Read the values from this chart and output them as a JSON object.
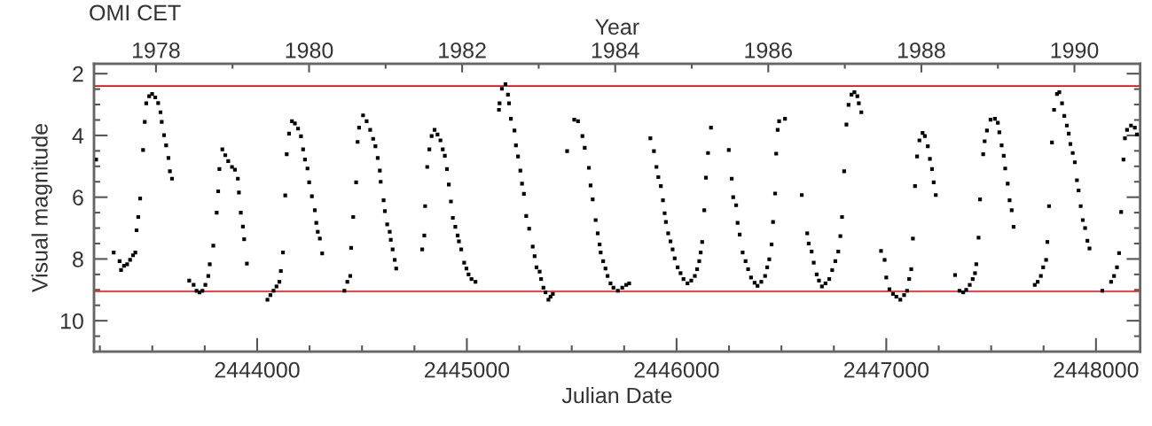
{
  "chart_data": {
    "type": "scatter",
    "title": "OMI CET",
    "xlabel": "Julian Date",
    "ylabel": "Visual magnitude",
    "x2label": "Year",
    "marker": "square",
    "grid": false,
    "xlim": [
      2443222,
      2448211
    ],
    "ylim": [
      11.0,
      1.68
    ],
    "x2lim": [
      1977.19,
      1990.86
    ],
    "xticks": [
      {
        "value": 2443250,
        "label": null
      },
      {
        "value": 2443500,
        "label": null
      },
      {
        "value": 2443750,
        "label": null
      },
      2444000,
      {
        "value": 2444250,
        "label": null
      },
      {
        "value": 2444500,
        "label": null
      },
      {
        "value": 2444750,
        "label": null
      },
      2445000,
      {
        "value": 2445250,
        "label": null
      },
      {
        "value": 2445500,
        "label": null
      },
      {
        "value": 2445750,
        "label": null
      },
      2446000,
      {
        "value": 2446250,
        "label": null
      },
      {
        "value": 2446500,
        "label": null
      },
      {
        "value": 2446750,
        "label": null
      },
      2447000,
      {
        "value": 2447250,
        "label": null
      },
      {
        "value": 2447500,
        "label": null
      },
      {
        "value": 2447750,
        "label": null
      },
      2448000
    ],
    "yticks": [
      2,
      {
        "value": 2.5,
        "label": null
      },
      {
        "value": 3,
        "label": null
      },
      {
        "value": 3.5,
        "label": null
      },
      4,
      {
        "value": 4.5,
        "label": null
      },
      {
        "value": 5,
        "label": null
      },
      {
        "value": 5.5,
        "label": null
      },
      6,
      {
        "value": 6.5,
        "label": null
      },
      {
        "value": 7,
        "label": null
      },
      {
        "value": 7.5,
        "label": null
      },
      8,
      {
        "value": 8.5,
        "label": null
      },
      {
        "value": 9,
        "label": null
      },
      {
        "value": 9.5,
        "label": null
      },
      10,
      {
        "value": 10.5,
        "label": null
      }
    ],
    "x2ticks": [
      1978,
      {
        "value": 1979,
        "label": null
      },
      1980,
      {
        "value": 1981,
        "label": null
      },
      1982,
      {
        "value": 1983,
        "label": null
      },
      1984,
      {
        "value": 1985,
        "label": null
      },
      1986,
      {
        "value": 1987,
        "label": null
      },
      1988,
      {
        "value": 1989,
        "label": null
      },
      1990
    ],
    "ref_lines": [
      {
        "axis": "y",
        "value": 2.4,
        "color": "#ff0000"
      },
      {
        "axis": "y",
        "value": 9.05,
        "color": "#ff0000"
      }
    ],
    "series": [
      {
        "color": "#000000",
        "x": [
          2443232,
          2443316,
          2443344,
          2443351,
          2443365,
          2443380,
          2443394,
          2443408,
          2443419,
          2443425,
          2443433,
          2443442,
          2443456,
          2443464,
          2443471,
          2443485,
          2443499,
          2443514,
          2443528,
          2443539,
          2443545,
          2443556,
          2443566,
          2443577,
          2443584,
          2443594,
          2443676,
          2443697,
          2443711,
          2443725,
          2443739,
          2443753,
          2443767,
          2443774,
          2443791,
          2443807,
          2443814,
          2443820,
          2443834,
          2443848,
          2443862,
          2443880,
          2443894,
          2443908,
          2443913,
          2443922,
          2443932,
          2443938,
          2443951,
          2444049,
          2444063,
          2444078,
          2444092,
          2444106,
          2444113,
          2444123,
          2444134,
          2444141,
          2444152,
          2444166,
          2444180,
          2444195,
          2444209,
          2444219,
          2444228,
          2444240,
          2444248,
          2444261,
          2444275,
          2444282,
          2444289,
          2444299,
          2444310,
          2444416,
          2444430,
          2444444,
          2444448,
          2444458,
          2444472,
          2444479,
          2444486,
          2444505,
          2444522,
          2444539,
          2444553,
          2444564,
          2444575,
          2444585,
          2444589,
          2444603,
          2444609,
          2444620,
          2444632,
          2444637,
          2444646,
          2444656,
          2444663,
          2444787,
          2444797,
          2444801,
          2444811,
          2444821,
          2444832,
          2444846,
          2444860,
          2444874,
          2444885,
          2444895,
          2444905,
          2444914,
          2444924,
          2444933,
          2444945,
          2444956,
          2444962,
          2444973,
          2444987,
          2444998,
          2445008,
          2445022,
          2445041,
          2445153,
          2445156,
          2445167,
          2445184,
          2445196,
          2445201,
          2445210,
          2445227,
          2445234,
          2445244,
          2445255,
          2445263,
          2445272,
          2445283,
          2445297,
          2445314,
          2445323,
          2445332,
          2445347,
          2445354,
          2445365,
          2445375,
          2445389,
          2445399,
          2445410,
          2445478,
          2445512,
          2445530,
          2445551,
          2445562,
          2445582,
          2445590,
          2445600,
          2445614,
          2445624,
          2445633,
          2445638,
          2445650,
          2445661,
          2445671,
          2445685,
          2445699,
          2445720,
          2445741,
          2445760,
          2445774,
          2445875,
          2445892,
          2445904,
          2445913,
          2445925,
          2445935,
          2445943,
          2445949,
          2445960,
          2445971,
          2445981,
          2445991,
          2446005,
          2446019,
          2446033,
          2446052,
          2446070,
          2446087,
          2446098,
          2446108,
          2446115,
          2446122,
          2446132,
          2446140,
          2446150,
          2446164,
          2446249,
          2446263,
          2446270,
          2446284,
          2446291,
          2446301,
          2446315,
          2446329,
          2446341,
          2446355,
          2446372,
          2446386,
          2446404,
          2446422,
          2446432,
          2446442,
          2446453,
          2446460,
          2446470,
          2446475,
          2446482,
          2446489,
          2446517,
          2446597,
          2446623,
          2446630,
          2446644,
          2446654,
          2446668,
          2446679,
          2446693,
          2446710,
          2446728,
          2446742,
          2446757,
          2446771,
          2446781,
          2446789,
          2446799,
          2446810,
          2446820,
          2446834,
          2446848,
          2446862,
          2446869,
          2446881,
          2446975,
          2446992,
          2447000,
          2447015,
          2447032,
          2447048,
          2447067,
          2447085,
          2447099,
          2447109,
          2447119,
          2447127,
          2447137,
          2447147,
          2447158,
          2447173,
          2447184,
          2447198,
          2447208,
          2447218,
          2447226,
          2447236,
          2447328,
          2447349,
          2447367,
          2447381,
          2447398,
          2447412,
          2447423,
          2447429,
          2447440,
          2447447,
          2447462,
          2447469,
          2447480,
          2447497,
          2447518,
          2447532,
          2447539,
          2447550,
          2447560,
          2447567,
          2447579,
          2447588,
          2447598,
          2447607,
          2447708,
          2447722,
          2447737,
          2447748,
          2447762,
          2447768,
          2447776,
          2447790,
          2447800,
          2447814,
          2447825,
          2447838,
          2447849,
          2447861,
          2447870,
          2447878,
          2447889,
          2447899,
          2447909,
          2447917,
          2447927,
          2447937,
          2447948,
          2447959,
          2447969,
          2448030,
          2448072,
          2448086,
          2448100,
          2448110,
          2448120,
          2448131,
          2448138,
          2448148,
          2448167,
          2448185,
          2448195
        ],
        "values": [
          4.78,
          7.79,
          8.07,
          8.36,
          8.22,
          8.17,
          8.03,
          7.88,
          7.79,
          7.07,
          6.64,
          6.04,
          4.47,
          3.56,
          2.96,
          2.73,
          2.66,
          2.77,
          2.95,
          3.25,
          3.56,
          3.99,
          4.32,
          4.73,
          5.16,
          5.4,
          8.7,
          8.84,
          9.03,
          9.08,
          9.03,
          8.84,
          8.55,
          8.17,
          7.57,
          6.5,
          5.81,
          5.09,
          4.45,
          4.64,
          4.83,
          5.02,
          5.11,
          5.4,
          5.85,
          6.5,
          6.95,
          7.36,
          8.15,
          9.32,
          9.17,
          9.03,
          8.89,
          8.74,
          8.39,
          7.79,
          5.94,
          4.61,
          3.94,
          3.54,
          3.61,
          3.78,
          4.03,
          4.45,
          4.78,
          5.07,
          5.52,
          5.97,
          6.42,
          6.83,
          7.12,
          7.34,
          7.82,
          9.03,
          8.74,
          8.55,
          7.64,
          6.64,
          5.52,
          4.21,
          3.75,
          3.35,
          3.54,
          3.82,
          4.11,
          4.35,
          4.73,
          5.14,
          5.5,
          6.1,
          6.45,
          6.88,
          7.12,
          7.38,
          7.69,
          8.03,
          8.31,
          7.69,
          7.24,
          6.29,
          5.02,
          4.45,
          4.02,
          3.82,
          3.97,
          4.16,
          4.45,
          4.66,
          5.09,
          5.59,
          6.14,
          6.67,
          6.96,
          7.24,
          7.43,
          7.69,
          8.12,
          8.31,
          8.5,
          8.65,
          8.74,
          3.17,
          2.96,
          2.49,
          2.34,
          2.68,
          2.96,
          3.46,
          3.84,
          4.32,
          4.68,
          5.14,
          5.56,
          5.89,
          6.61,
          7.02,
          7.6,
          7.91,
          8.27,
          8.41,
          8.65,
          8.93,
          9.08,
          9.32,
          9.22,
          9.13,
          4.51,
          3.49,
          3.54,
          4.02,
          4.4,
          5.05,
          5.62,
          6.07,
          6.74,
          7.17,
          7.53,
          7.79,
          8.07,
          8.31,
          8.55,
          8.79,
          8.93,
          9.03,
          8.93,
          8.84,
          8.79,
          4.09,
          4.51,
          5.02,
          5.35,
          5.64,
          6.1,
          6.52,
          6.8,
          7.17,
          7.43,
          7.69,
          7.98,
          8.27,
          8.46,
          8.65,
          8.79,
          8.7,
          8.55,
          8.33,
          8.07,
          7.79,
          7.45,
          6.42,
          5.37,
          4.57,
          3.75,
          4.47,
          5.4,
          6.0,
          6.26,
          6.83,
          7.21,
          7.79,
          8.07,
          8.33,
          8.6,
          8.77,
          8.87,
          8.74,
          8.55,
          8.27,
          8.01,
          7.53,
          6.8,
          5.88,
          4.59,
          3.82,
          3.54,
          3.46,
          5.93,
          7.17,
          7.5,
          7.76,
          8.12,
          8.5,
          8.7,
          8.89,
          8.79,
          8.65,
          8.36,
          8.07,
          7.76,
          7.26,
          6.64,
          5.16,
          3.65,
          3.01,
          2.68,
          2.6,
          2.73,
          2.96,
          3.25,
          7.74,
          8.03,
          8.6,
          8.98,
          9.13,
          9.22,
          9.32,
          9.17,
          9.03,
          8.65,
          8.33,
          7.34,
          5.64,
          4.68,
          4.16,
          3.92,
          4.02,
          4.35,
          4.76,
          5.09,
          5.52,
          5.93,
          8.52,
          9.03,
          9.08,
          9.0,
          8.84,
          8.65,
          8.46,
          8.17,
          7.31,
          6.07,
          4.61,
          4.19,
          3.84,
          3.49,
          3.46,
          3.59,
          3.9,
          4.32,
          4.66,
          5.07,
          5.56,
          6.1,
          6.42,
          6.96,
          8.84,
          8.74,
          8.55,
          8.27,
          8.03,
          7.45,
          6.29,
          4.23,
          3.17,
          2.66,
          2.6,
          2.96,
          3.37,
          3.68,
          3.94,
          4.28,
          4.57,
          4.87,
          5.45,
          5.78,
          6.29,
          6.74,
          7.0,
          7.41,
          7.66,
          9.03,
          8.74,
          8.55,
          8.27,
          7.81,
          6.48,
          4.78,
          4.09,
          3.82,
          3.68,
          3.75,
          3.97
        ]
      }
    ]
  }
}
